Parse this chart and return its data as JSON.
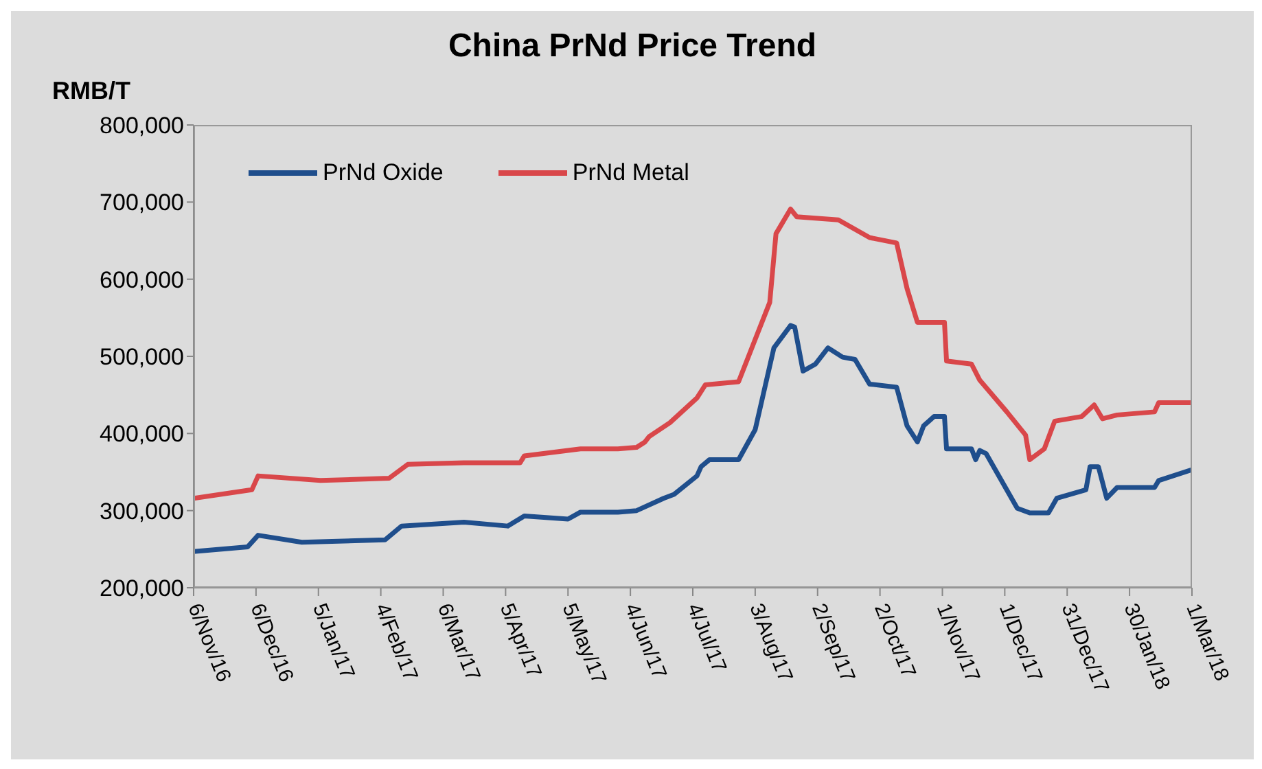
{
  "chart_data": {
    "type": "line",
    "title": "China PrNd Price Trend",
    "ylabel": "RMB/T",
    "ylim": [
      200000,
      800000
    ],
    "yticks": [
      {
        "value": 200000,
        "label": "200,000"
      },
      {
        "value": 300000,
        "label": "300,000"
      },
      {
        "value": 400000,
        "label": "400,000"
      },
      {
        "value": 500000,
        "label": "500,000"
      },
      {
        "value": 600000,
        "label": "600,000"
      },
      {
        "value": 700000,
        "label": "700,000"
      },
      {
        "value": 800000,
        "label": "800,000"
      }
    ],
    "xlim": [
      "2016-11-06",
      "2018-03-01"
    ],
    "xticks": [
      {
        "value": "2016-11-06",
        "label": "6/Nov/16"
      },
      {
        "value": "2016-12-06",
        "label": "6/Dec/16"
      },
      {
        "value": "2017-01-05",
        "label": "5/Jan/17"
      },
      {
        "value": "2017-02-04",
        "label": "4/Feb/17"
      },
      {
        "value": "2017-03-06",
        "label": "6/Mar/17"
      },
      {
        "value": "2017-04-05",
        "label": "5/Apr/17"
      },
      {
        "value": "2017-05-05",
        "label": "5/May/17"
      },
      {
        "value": "2017-06-04",
        "label": "4/Jun/17"
      },
      {
        "value": "2017-07-04",
        "label": "4/Jul/17"
      },
      {
        "value": "2017-08-03",
        "label": "3/Aug/17"
      },
      {
        "value": "2017-09-02",
        "label": "2/Sep/17"
      },
      {
        "value": "2017-10-02",
        "label": "2/Oct/17"
      },
      {
        "value": "2017-11-01",
        "label": "1/Nov/17"
      },
      {
        "value": "2017-12-01",
        "label": "1/Dec/17"
      },
      {
        "value": "2017-12-31",
        "label": "31/Dec/17"
      },
      {
        "value": "2018-01-30",
        "label": "30/Jan/18"
      },
      {
        "value": "2018-03-01",
        "label": "1/Mar/18"
      }
    ],
    "legend": "top left",
    "marker": "none",
    "series": [
      {
        "name": "PrNd Oxide",
        "color": "#1f4e8c",
        "x": [
          "2016-11-06",
          "2016-12-02",
          "2016-12-07",
          "2016-12-28",
          "2017-02-06",
          "2017-02-14",
          "2017-03-16",
          "2017-04-06",
          "2017-04-14",
          "2017-05-05",
          "2017-05-11",
          "2017-05-29",
          "2017-06-07",
          "2017-06-20",
          "2017-06-25",
          "2017-07-06",
          "2017-07-08",
          "2017-07-12",
          "2017-07-26",
          "2017-08-03",
          "2017-08-12",
          "2017-08-20",
          "2017-08-22",
          "2017-08-26",
          "2017-09-01",
          "2017-09-07",
          "2017-09-14",
          "2017-09-20",
          "2017-09-27",
          "2017-10-10",
          "2017-10-15",
          "2017-10-20",
          "2017-10-23",
          "2017-10-28",
          "2017-11-02",
          "2017-11-03",
          "2017-11-15",
          "2017-11-17",
          "2017-11-19",
          "2017-11-22",
          "2017-12-07",
          "2017-12-13",
          "2017-12-22",
          "2017-12-26",
          "2018-01-09",
          "2018-01-11",
          "2018-01-15",
          "2018-01-19",
          "2018-01-24",
          "2018-02-11",
          "2018-02-13",
          "2018-03-01"
        ],
        "values": [
          247000,
          253000,
          268000,
          259000,
          262000,
          280000,
          285000,
          280000,
          293000,
          289000,
          298000,
          298000,
          300000,
          316000,
          321000,
          345000,
          357000,
          366000,
          366000,
          405000,
          511000,
          540000,
          538000,
          481000,
          490000,
          511000,
          499000,
          496000,
          464000,
          460000,
          410000,
          389000,
          410000,
          422000,
          422000,
          380000,
          380000,
          366000,
          378000,
          374000,
          303000,
          297000,
          297000,
          316000,
          327000,
          357000,
          357000,
          316000,
          330000,
          330000,
          339000,
          353000
        ]
      },
      {
        "name": "PrNd Metal",
        "color": "#d9474a",
        "x": [
          "2016-11-06",
          "2016-12-04",
          "2016-12-07",
          "2017-01-06",
          "2017-02-08",
          "2017-02-17",
          "2017-03-16",
          "2017-04-12",
          "2017-04-14",
          "2017-05-11",
          "2017-05-29",
          "2017-06-07",
          "2017-06-11",
          "2017-06-13",
          "2017-06-23",
          "2017-07-06",
          "2017-07-10",
          "2017-07-26",
          "2017-08-03",
          "2017-08-10",
          "2017-08-13",
          "2017-08-20",
          "2017-08-23",
          "2017-09-12",
          "2017-09-27",
          "2017-10-10",
          "2017-10-15",
          "2017-10-20",
          "2017-11-02",
          "2017-11-03",
          "2017-11-15",
          "2017-11-19",
          "2017-12-02",
          "2017-12-11",
          "2017-12-13",
          "2017-12-20",
          "2017-12-25",
          "2018-01-07",
          "2018-01-13",
          "2018-01-17",
          "2018-01-24",
          "2018-02-11",
          "2018-02-13",
          "2018-03-01"
        ],
        "values": [
          316000,
          327000,
          345000,
          339000,
          342000,
          360000,
          362000,
          362000,
          371000,
          380000,
          380000,
          382000,
          389000,
          396000,
          414000,
          446000,
          463000,
          467000,
          522000,
          570000,
          659000,
          691000,
          681000,
          677000,
          654000,
          647000,
          588000,
          544000,
          544000,
          494000,
          490000,
          469000,
          428000,
          398000,
          366000,
          380000,
          416000,
          422000,
          437000,
          419000,
          424000,
          428000,
          440000,
          440000
        ]
      }
    ]
  }
}
